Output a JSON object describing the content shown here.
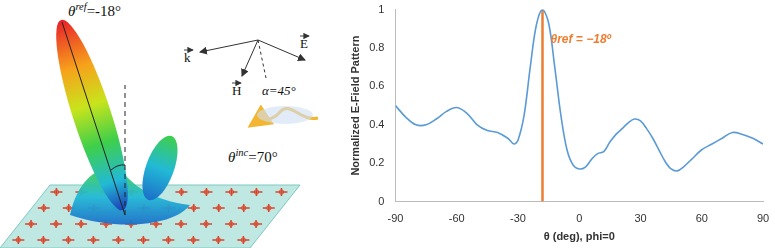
{
  "chart_data": {
    "type": "line",
    "x_label": "θ (deg), phi=0",
    "y_label": "Normalized E-Field Pattern",
    "x": [
      -90,
      -85,
      -80,
      -75,
      -70,
      -65,
      -60,
      -55,
      -50,
      -45,
      -40,
      -35,
      -32,
      -30,
      -27,
      -24,
      -21,
      -18,
      -15,
      -12,
      -9,
      -6,
      -3,
      0,
      3,
      6,
      9,
      12,
      15,
      18,
      21,
      24,
      27,
      30,
      33,
      36,
      39,
      42,
      45,
      48,
      51,
      55,
      60,
      65,
      70,
      75,
      80,
      85,
      90
    ],
    "series": [
      {
        "color": "#5b9bd5",
        "values": [
          0.5,
          0.44,
          0.4,
          0.4,
          0.43,
          0.47,
          0.49,
          0.46,
          0.4,
          0.37,
          0.36,
          0.33,
          0.3,
          0.32,
          0.45,
          0.7,
          0.92,
          1.0,
          0.93,
          0.7,
          0.45,
          0.27,
          0.19,
          0.17,
          0.18,
          0.22,
          0.25,
          0.26,
          0.31,
          0.35,
          0.38,
          0.41,
          0.43,
          0.42,
          0.38,
          0.33,
          0.27,
          0.21,
          0.17,
          0.16,
          0.18,
          0.22,
          0.27,
          0.3,
          0.33,
          0.36,
          0.35,
          0.33,
          0.3
        ]
      }
    ],
    "reference_line": {
      "x": -18,
      "color": "#ed7d31",
      "label": "θref = −18º"
    },
    "xlim": [
      -90,
      90
    ],
    "xticks": [
      -90,
      -60,
      -30,
      0,
      30,
      60,
      90
    ],
    "ylim": [
      0,
      1
    ],
    "yticks": [
      0,
      0.2,
      0.4,
      0.6,
      0.8,
      1
    ],
    "grid": false,
    "legend": false
  },
  "illustration": {
    "reflected": [
      "θ",
      "ref",
      "=-18°"
    ],
    "incident": [
      "θ",
      "inc",
      "=70°"
    ],
    "vectors": [
      "k",
      "H",
      "E"
    ],
    "polarization": "α=45°"
  }
}
